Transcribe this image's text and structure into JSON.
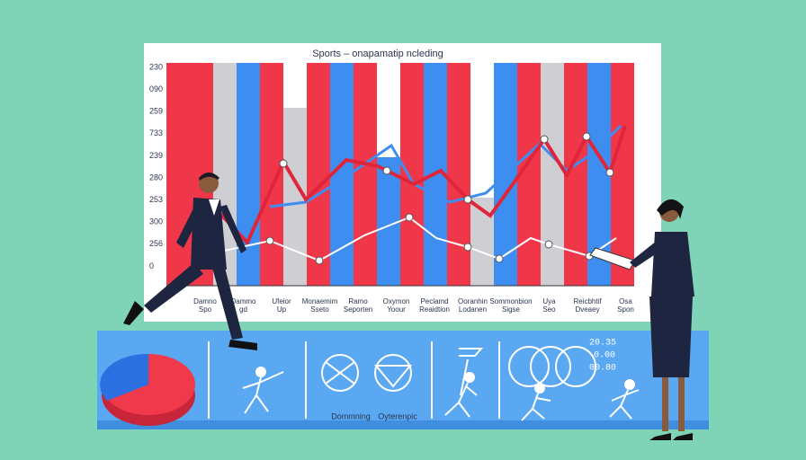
{
  "chart": {
    "title": "Sports – onapamatip ncleding",
    "y_labels": [
      "230",
      "090",
      "259",
      "733",
      "239",
      "280",
      "253",
      "300",
      "256",
      "0"
    ],
    "x_labels": [
      "Damno\nSpo",
      "Dammo\ngd",
      "Ufeior\nUp",
      "Monaemim\nSseto",
      "Ramo\nSeporten",
      "Oxymon\nYoour",
      "Peclamd\nReaidtion",
      "Ooranhin\nLodanen",
      "Sommonbion\nSigse",
      "Uya\nSeo",
      "Reicbhtif\nDveaey",
      "Osa\nSpon"
    ]
  },
  "panel": {
    "labels": [
      "Dommning",
      "Oyterenpic"
    ],
    "figures": [
      "20.35",
      "0.00",
      "00.80"
    ]
  }
}
